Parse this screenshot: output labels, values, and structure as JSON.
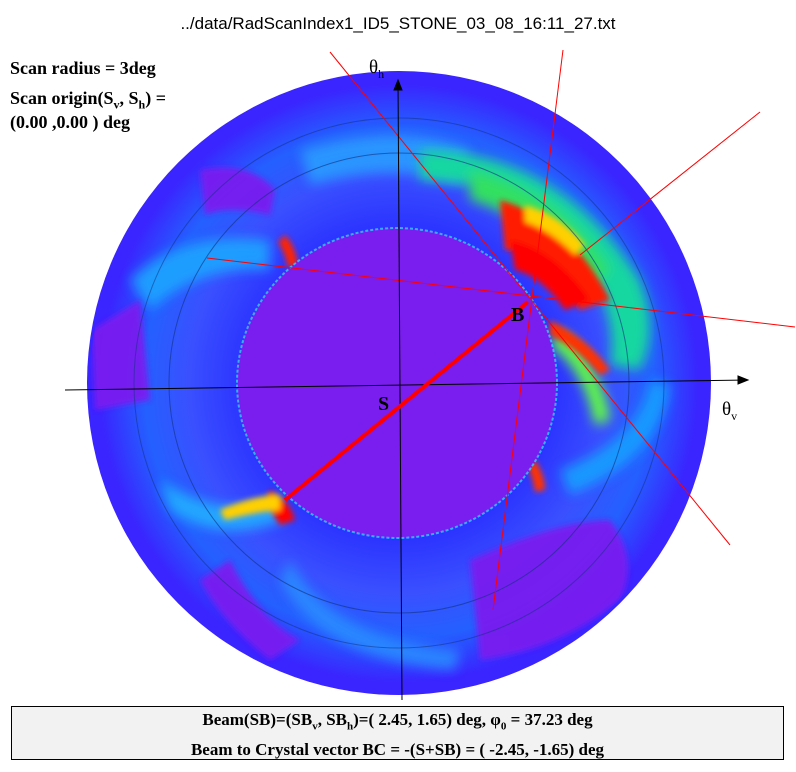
{
  "chart_data": {
    "type": "heatmap",
    "title": "../data/RadScanIndex1_ID5_STONE_03_08_16:11_27.txt",
    "info": {
      "scan_radius_label": "Scan  radius =  3deg",
      "scan_origin_label": "Scan origin(S",
      "scan_origin_sub_v": "v",
      "scan_origin_mid": ", S",
      "scan_origin_sub_h": "h",
      "scan_origin_end": ") =",
      "scan_origin_value": "(0.00  ,0.00  ) deg"
    },
    "axes": {
      "x_label": "θ",
      "x_sub": "v",
      "y_label": "θ",
      "y_sub": "h"
    },
    "points": {
      "origin_label": "S",
      "beam_label": "B"
    },
    "beam_vector_deg": {
      "SB_v": 2.45,
      "SB_h": 1.65,
      "phi0": 37.23
    },
    "footer": {
      "line1_a": "Beam(SB)=(SB",
      "line1_sub_v": "v",
      "line1_b": ", SB",
      "line1_sub_h": "h",
      "line1_c": ")=(  2.45,  1.65) deg,     φ",
      "line1_sub_0": "0",
      "line1_d": " = 37.23 deg",
      "line2": "Beam to Crystal vector BC = -(S+SB) = ( -2.45, -1.65) deg"
    },
    "colors": {
      "background_ring": "#3a24ff",
      "inner_disk": "#7a1ef0",
      "high": "#ff0000",
      "mid": "#00d060",
      "low": "#18a8ff",
      "beam_line": "#ff0000"
    }
  }
}
